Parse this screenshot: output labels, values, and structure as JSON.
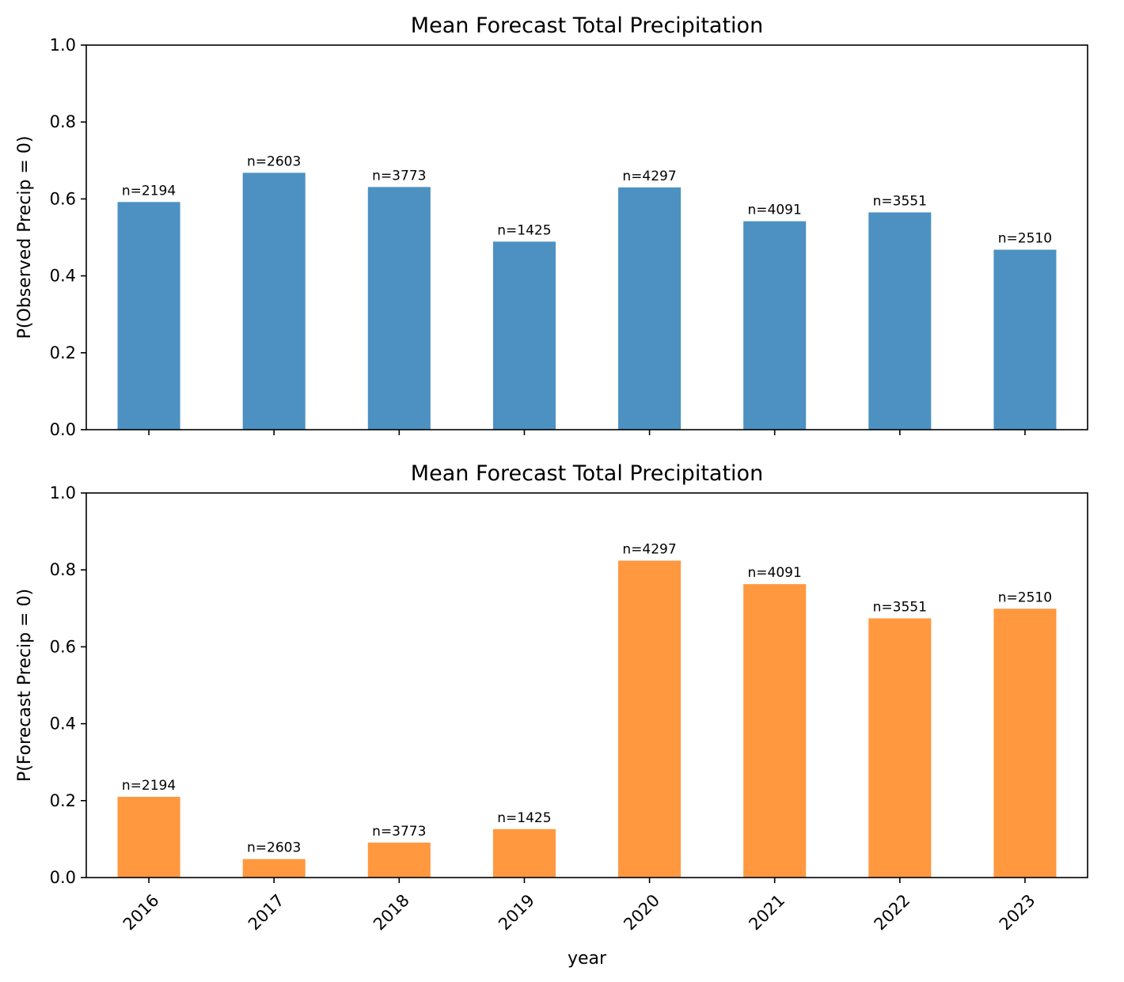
{
  "chart_data": [
    {
      "type": "bar",
      "title": "Mean Forecast Total Precipitation",
      "xlabel": "",
      "ylabel": "P(Observed Precip = 0)",
      "ylim": [
        0,
        1
      ],
      "yticks": [
        "0.0",
        "0.2",
        "0.4",
        "0.6",
        "0.8",
        "1.0"
      ],
      "categories": [
        "2016",
        "2017",
        "2018",
        "2019",
        "2020",
        "2021",
        "2022",
        "2023"
      ],
      "values": [
        0.592,
        0.668,
        0.631,
        0.489,
        0.63,
        0.542,
        0.565,
        0.468
      ],
      "labels": [
        "n=2194",
        "n=2603",
        "n=3773",
        "n=1425",
        "n=4297",
        "n=4091",
        "n=3551",
        "n=2510"
      ],
      "show_xticklabels": false,
      "color": "#4c91c2",
      "grid": false
    },
    {
      "type": "bar",
      "title": "Mean Forecast Total Precipitation",
      "xlabel": "year",
      "ylabel": "P(Forecast Precip = 0)",
      "ylim": [
        0,
        1
      ],
      "yticks": [
        "0.0",
        "0.2",
        "0.4",
        "0.6",
        "0.8",
        "1.0"
      ],
      "categories": [
        "2016",
        "2017",
        "2018",
        "2019",
        "2020",
        "2021",
        "2022",
        "2023"
      ],
      "values": [
        0.21,
        0.048,
        0.091,
        0.126,
        0.824,
        0.763,
        0.674,
        0.699
      ],
      "labels": [
        "n=2194",
        "n=2603",
        "n=3773",
        "n=1425",
        "n=4297",
        "n=4091",
        "n=3551",
        "n=2510"
      ],
      "show_xticklabels": true,
      "color": "#ff983f",
      "grid": false
    }
  ]
}
